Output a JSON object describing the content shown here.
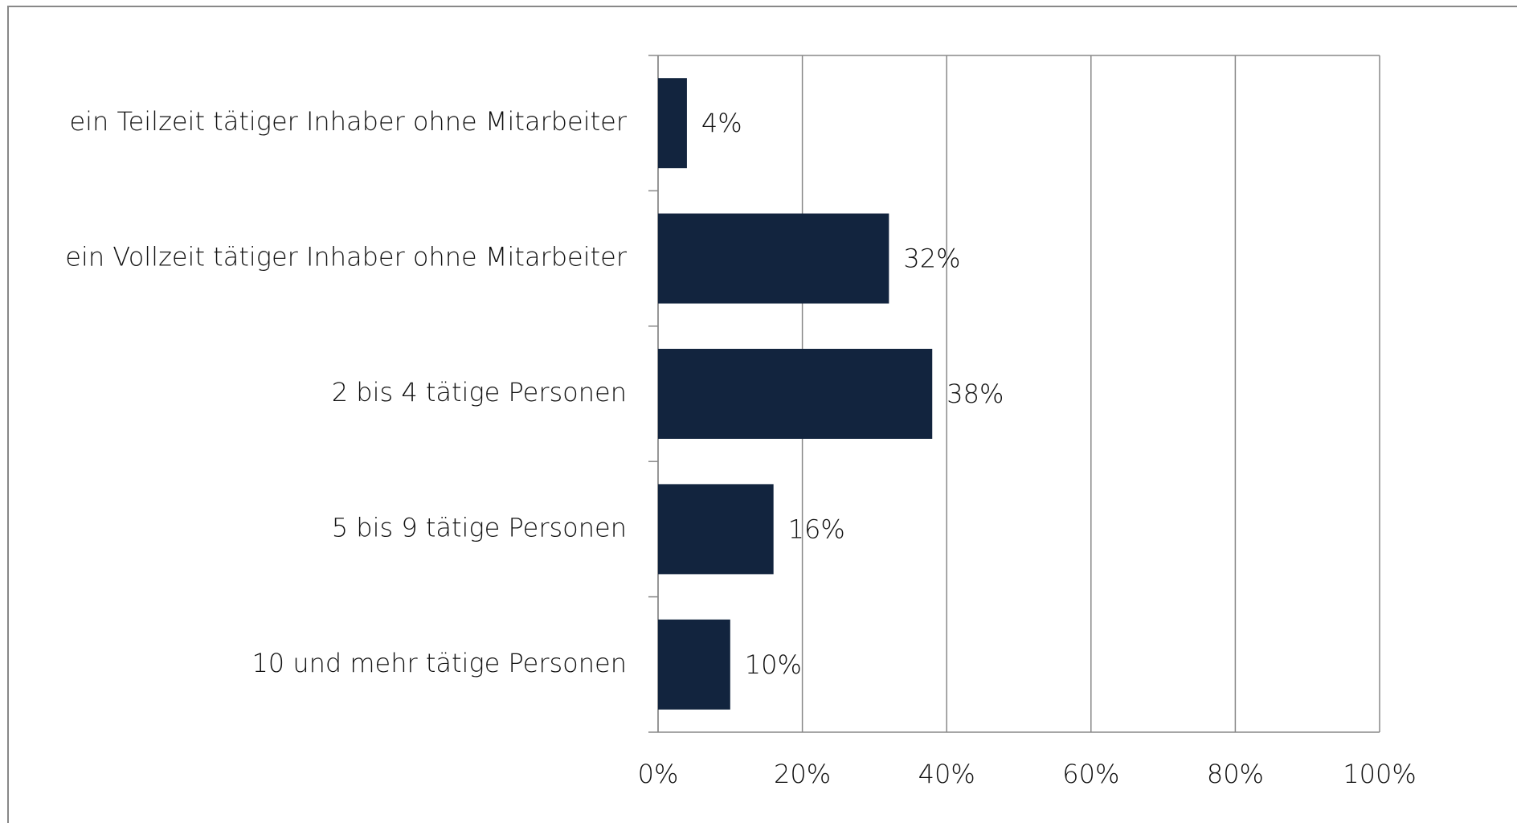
{
  "chart_data": {
    "type": "bar",
    "orientation": "horizontal",
    "categories": [
      "ein Teilzeit tätiger Inhaber ohne Mitarbeiter",
      "ein Vollzeit tätiger Inhaber ohne Mitarbeiter",
      "2 bis 4 tätige Personen",
      "5 bis 9 tätige Personen",
      "10 und mehr tätige Personen"
    ],
    "values": [
      4,
      32,
      38,
      16,
      10
    ],
    "value_labels": [
      "4%",
      "32%",
      "38%",
      "16%",
      "10%"
    ],
    "color": "#12243e",
    "xlim": [
      0,
      100
    ],
    "xticks": [
      {
        "value": 0,
        "label": "0%"
      },
      {
        "value": 20,
        "label": "20%"
      },
      {
        "value": 40,
        "label": "40%"
      },
      {
        "value": 60,
        "label": "60%"
      },
      {
        "value": 80,
        "label": "80%"
      },
      {
        "value": 100,
        "label": "100%"
      }
    ],
    "grid": true
  }
}
